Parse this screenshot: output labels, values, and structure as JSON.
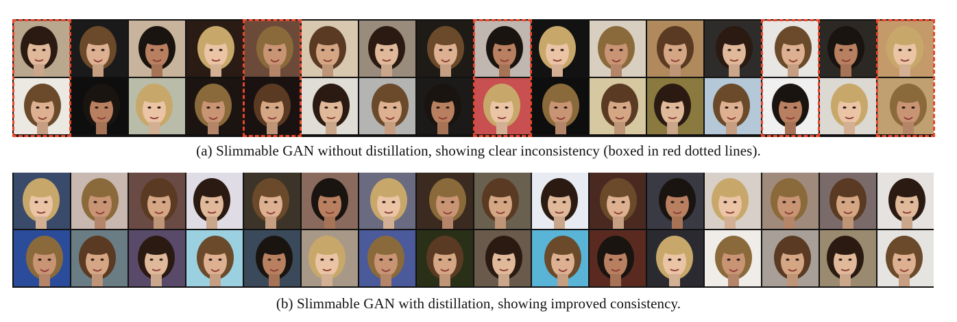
{
  "figure": {
    "panel_a": {
      "caption": "(a)  Slimmable GAN without distillation, showing clear inconsistency (boxed in red dotted lines).",
      "marked_columns": [
        0,
        4,
        8,
        13,
        15
      ],
      "highlight_color": "#e8452a",
      "rows": [
        [
          "#b9a78e",
          "#1a1a1a",
          "#c8b49c",
          "#2a1c14",
          "#6b4a3a",
          "#d8c8b0",
          "#9a8c7c",
          "#1e1a16",
          "#c0b8b0",
          "#121212",
          "#d8cfc0",
          "#b08a5c",
          "#2e2c2a",
          "#e8e6e2",
          "#2c2824",
          "#c49a6a"
        ],
        [
          "#ece8e2",
          "#0e0e0e",
          "#b8bca8",
          "#1c1410",
          "#1a1210",
          "#e0dcd6",
          "#b4b4b2",
          "#1c1a18",
          "#c85050",
          "#0e0e0e",
          "#d6c8a0",
          "#8a7a40",
          "#b4c8d8",
          "#f0f0f0",
          "#dcd8d2",
          "#c0a070"
        ]
      ]
    },
    "panel_b": {
      "caption": "(b)  Slimmable GAN with distillation, showing improved consistency.",
      "rows": [
        [
          "#3a4a6a",
          "#c8b8b0",
          "#6a4a44",
          "#e0dce6",
          "#3c3428",
          "#8a6a5c",
          "#6a6a80",
          "#3a2a20",
          "#6a6050",
          "#e8ecf2",
          "#4a2a20",
          "#3a3a44",
          "#d8d0c8",
          "#a08a7c",
          "#7a6a6a",
          "#e6e2e0"
        ],
        [
          "#2a4c9a",
          "#6a7c84",
          "#5a4a6a",
          "#9ad0e0",
          "#3a4a5a",
          "#a89888",
          "#4a5a9a",
          "#2a3018",
          "#6a5a4c",
          "#5ab4d8",
          "#5a2a20",
          "#2a2a30",
          "#f0ece8",
          "#a8a098",
          "#9a8a70",
          "#e6e4e0"
        ]
      ]
    }
  }
}
